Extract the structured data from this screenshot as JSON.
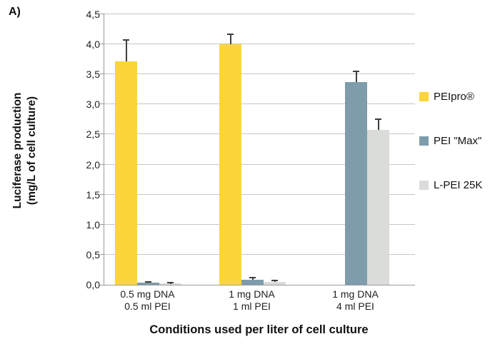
{
  "figure_label": "A)",
  "y_axis_title": {
    "line1": "Luciferase production",
    "line2": "(mg/L of cell culture)"
  },
  "x_axis_title": "Conditions used per liter of cell culture",
  "chart_data": {
    "type": "bar",
    "title": "",
    "xlabel": "Conditions used per liter of cell culture",
    "ylabel": "Luciferase production (mg/L of cell culture)",
    "ylim": [
      0,
      4.5
    ],
    "y_tick_step": 0.5,
    "y_tick_labels": [
      "0,0",
      "0,5",
      "1,0",
      "1,5",
      "2,0",
      "2,5",
      "3,0",
      "3,5",
      "4,0",
      "4,5"
    ],
    "grid": true,
    "legend_position": "right",
    "categories": [
      {
        "line1": "0.5 mg DNA",
        "line2": "0.5 ml PEI"
      },
      {
        "line1": "1 mg DNA",
        "line2": "1 ml PEI"
      },
      {
        "line1": "1 mg DNA",
        "line2": "4 ml PEI"
      }
    ],
    "series": [
      {
        "name": "PEIpro®",
        "color": "#FCD53B",
        "values": [
          3.72,
          4.0,
          null
        ],
        "errors": [
          0.35,
          0.17,
          null
        ]
      },
      {
        "name": "PEI \"Max\"",
        "color": "#7E9CAB",
        "values": [
          0.03,
          0.08,
          3.37
        ],
        "errors": [
          0.02,
          0.04,
          0.18
        ]
      },
      {
        "name": "L-PEI 25K",
        "color": "#DADCD9",
        "values": [
          0.02,
          0.05,
          2.58
        ],
        "errors": [
          0.01,
          0.02,
          0.17
        ]
      }
    ],
    "error_bar_color": "#3F3F3F"
  },
  "style_colors": {
    "gridline": "#C6C6C6",
    "axis": "#9B9B9B",
    "text": "#1F1F1F"
  }
}
